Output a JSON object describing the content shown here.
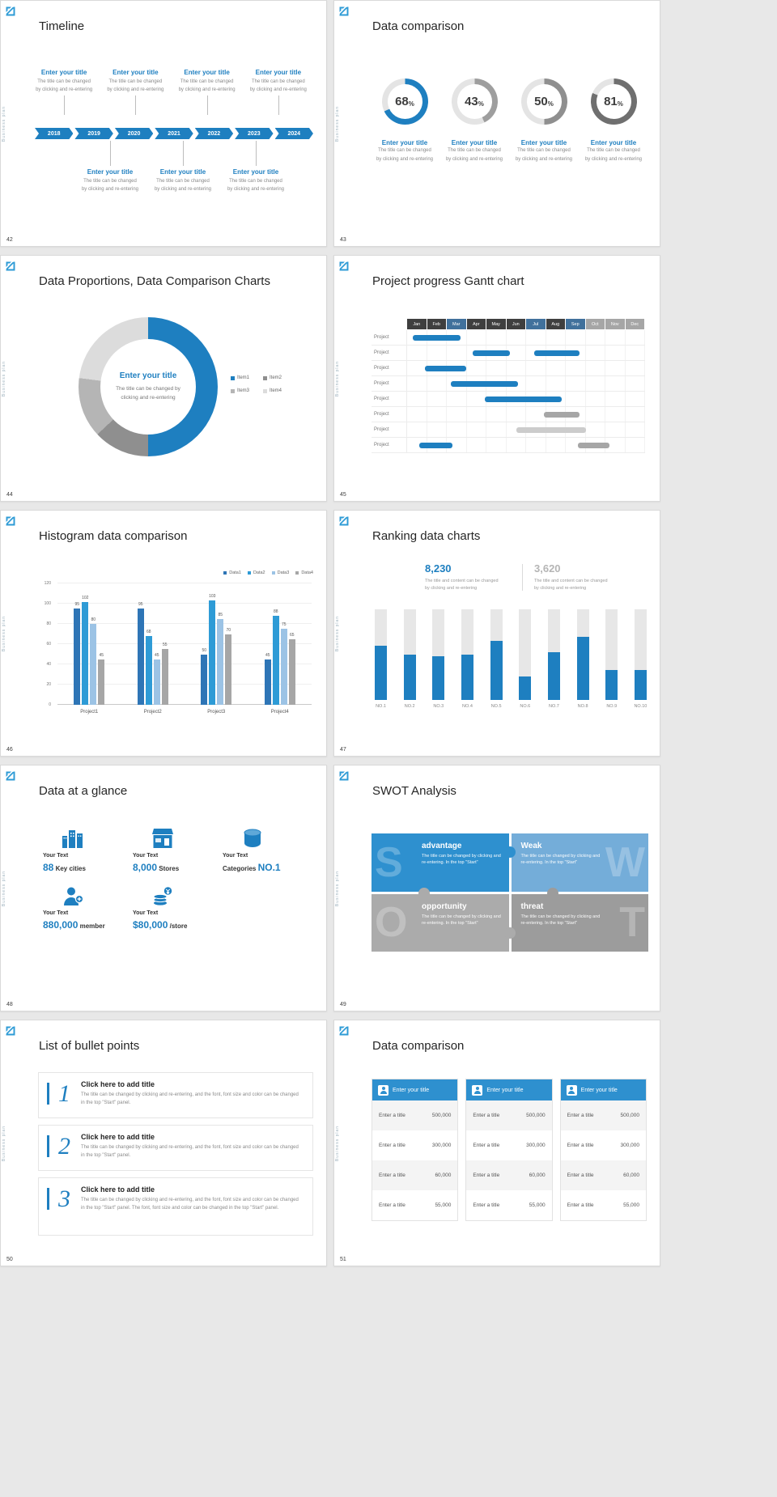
{
  "page": {
    "background": "#e8e8e8",
    "accent": "#1e7fc0"
  },
  "common": {
    "sidebar_text": "Business plan"
  },
  "s42": {
    "number": "42",
    "title": "Timeline",
    "entry": {
      "title": "Enter your title",
      "line1": "The title can be changed",
      "line2": "by clicking and re-entering"
    },
    "top_count": 4,
    "bottom_count": 3,
    "years": [
      "2018",
      "2019",
      "2020",
      "2021",
      "2022",
      "2023",
      "2024"
    ]
  },
  "s43": {
    "number": "43",
    "title": "Data comparison",
    "track_color": "#e4e4e4",
    "entry": {
      "title": "Enter your title",
      "line1": "The title can be changed",
      "line2": "by clicking and re-entering"
    },
    "chart_data": {
      "type": "donut-set",
      "items": [
        {
          "pct": 68,
          "color": "#1e7fc0"
        },
        {
          "pct": 43,
          "color": "#9e9e9e"
        },
        {
          "pct": 50,
          "color": "#8f8f8f"
        },
        {
          "pct": 81,
          "color": "#6f6f6f"
        }
      ]
    }
  },
  "s44": {
    "number": "44",
    "title": "Data Proportions, Data Comparison Charts",
    "center": {
      "title": "Enter your title",
      "line1": "The title can be changed by",
      "line2": "clicking and re-entering"
    },
    "chart_data": {
      "type": "pie",
      "segments": [
        {
          "label": "Item1",
          "pct": 50,
          "color": "#1e7fc0"
        },
        {
          "label": "Item2",
          "pct": 13,
          "color": "#8f8f8f"
        },
        {
          "label": "Item3",
          "pct": 14,
          "color": "#b5b5b5"
        },
        {
          "label": "Item4",
          "pct": 23,
          "color": "#dcdcdc"
        }
      ]
    }
  },
  "s45": {
    "number": "45",
    "title": "Project progress Gantt chart",
    "row_label": "Project",
    "row_count": 8,
    "months": [
      {
        "label": "Jan",
        "variant": "dark"
      },
      {
        "label": "Feb",
        "variant": "dark"
      },
      {
        "label": "Mar",
        "variant": "blue"
      },
      {
        "label": "Apr",
        "variant": "dark"
      },
      {
        "label": "May",
        "variant": "dark"
      },
      {
        "label": "Jun",
        "variant": "dark"
      },
      {
        "label": "Jul",
        "variant": "blue"
      },
      {
        "label": "Aug",
        "variant": "dark"
      },
      {
        "label": "Sep",
        "variant": "blue"
      },
      {
        "label": "Oct",
        "variant": "light"
      },
      {
        "label": "Nov",
        "variant": "light"
      },
      {
        "label": "Dec",
        "variant": "light"
      }
    ],
    "variant_colors": {
      "dark": "#3f3f3f",
      "blue": "#41719c",
      "light": "#a6a6a6"
    },
    "chart_data": {
      "type": "gantt",
      "bars": [
        {
          "row": 0,
          "start": 0.3,
          "span": 2.4,
          "color": "#1e7fc0"
        },
        {
          "row": 1,
          "start": 3.3,
          "span": 1.9,
          "color": "#1e7fc0"
        },
        {
          "row": 1,
          "start": 6.4,
          "span": 2.3,
          "color": "#1e7fc0"
        },
        {
          "row": 2,
          "start": 0.9,
          "span": 2.1,
          "color": "#1e7fc0"
        },
        {
          "row": 3,
          "start": 2.2,
          "span": 3.4,
          "color": "#1e7fc0"
        },
        {
          "row": 4,
          "start": 3.9,
          "span": 3.9,
          "color": "#1e7fc0"
        },
        {
          "row": 5,
          "start": 6.9,
          "span": 1.8,
          "color": "#a6a6a6"
        },
        {
          "row": 6,
          "start": 5.5,
          "span": 3.5,
          "color": "#cccccc"
        },
        {
          "row": 7,
          "start": 0.6,
          "span": 1.7,
          "color": "#1e7fc0"
        },
        {
          "row": 7,
          "start": 8.6,
          "span": 1.6,
          "color": "#a6a6a6"
        }
      ]
    }
  },
  "s46": {
    "number": "46",
    "title": "Histogram data comparison",
    "chart_data": {
      "type": "bar",
      "categories": [
        "Project1",
        "Project2",
        "Project3",
        "Project4"
      ],
      "series": [
        {
          "name": "Data1",
          "color": "#2e75b6",
          "values": [
            95,
            95,
            50,
            45
          ]
        },
        {
          "name": "Data2",
          "color": "#2e9bd6",
          "values": [
            102,
            68,
            103,
            88
          ]
        },
        {
          "name": "Data3",
          "color": "#9cc3e5",
          "values": [
            80,
            45,
            85,
            75
          ]
        },
        {
          "name": "Data4",
          "color": "#a6a6a6",
          "values": [
            45,
            55,
            70,
            65
          ]
        }
      ],
      "ylim": [
        0,
        120
      ],
      "ystep": 20
    }
  },
  "s47": {
    "number": "47",
    "title": "Ranking data charts",
    "stat1": {
      "value": "8,230",
      "line1": "The title and content can be changed",
      "line2": "by clicking and re-entering"
    },
    "stat2": {
      "value": "3,620",
      "line1": "The title and content can be changed",
      "line2": "by clicking and re-entering"
    },
    "chart_data": {
      "type": "bar",
      "categories": [
        "NO.1",
        "NO.2",
        "NO.3",
        "NO.4",
        "NO.5",
        "NO.6",
        "NO.7",
        "NO.8",
        "NO.9",
        "NO.10"
      ],
      "fractions": [
        0.6,
        0.5,
        0.48,
        0.5,
        0.65,
        0.26,
        0.53,
        0.7,
        0.33,
        0.33
      ],
      "bar_color": "#1e7fc0",
      "track_color": "#e7e7e7"
    }
  },
  "s48": {
    "number": "48",
    "title": "Data at a glance",
    "items": [
      {
        "icon": "city-icon",
        "label": "Your Text",
        "value": "88",
        "unit": "Key cities",
        "value_first": true
      },
      {
        "icon": "store-icon",
        "label": "Your Text",
        "value": "8,000",
        "unit": "Stores",
        "value_first": true
      },
      {
        "icon": "categories-icon",
        "label": "Your Text",
        "value": "NO.1",
        "unit": "Categories",
        "value_first": false
      },
      {
        "icon": "member-icon",
        "label": "Your Text",
        "value": "880,000",
        "unit": "member",
        "value_first": true
      },
      {
        "icon": "money-icon",
        "label": "Your Text",
        "value": "$80,000",
        "unit": "/store",
        "value_first": true
      }
    ]
  },
  "s49": {
    "number": "49",
    "title": "SWOT Analysis",
    "quadrants": [
      {
        "letter": "S",
        "heading": "advantage",
        "body": "The title can be changed by clicking and re-entering. In the top \"Start\"",
        "color": "#2e90cf",
        "letter_side": "left"
      },
      {
        "letter": "W",
        "heading": "Weak",
        "body": "The title can be changed by clicking and re-entering. In the top \"Start\"",
        "color": "#74add9",
        "letter_side": "right"
      },
      {
        "letter": "O",
        "heading": "opportunity",
        "body": "The title can be changed by clicking and re-entering. In the top \"Start\"",
        "color": "#ababab",
        "letter_side": "left"
      },
      {
        "letter": "T",
        "heading": "threat",
        "body": "The title can be changed by clicking and re-entering. In the top \"Start\"",
        "color": "#9c9c9c",
        "letter_side": "right"
      }
    ]
  },
  "s50": {
    "number": "50",
    "title": "List of bullet points",
    "items": [
      {
        "num": "1",
        "heading": "Click here to add title",
        "body": "The title can be changed by clicking and re-entering, and the font, font size and color can be changed in the top \"Start\" panel."
      },
      {
        "num": "2",
        "heading": "Click here to add title",
        "body": "The title can be changed by clicking and re-entering, and the font, font size and color can be changed in the top \"Start\" panel."
      },
      {
        "num": "3",
        "heading": "Click here to add title",
        "body": "The title can be changed by clicking and re-entering, and the font, font size and color can be changed in the top \"Start\" panel. The font, font size and color can be changed in the top \"Start\" panel."
      }
    ]
  },
  "s51": {
    "number": "51",
    "title": "Data comparison",
    "cards": [
      {
        "icon": "person-chart-icon",
        "title": "Enter your title",
        "rows": [
          {
            "label": "Enter a title",
            "value": "500,000"
          },
          {
            "label": "Enter a title",
            "value": "300,000"
          },
          {
            "label": "Enter a title",
            "value": "60,000"
          },
          {
            "label": "Enter a title",
            "value": "55,000"
          }
        ]
      },
      {
        "icon": "person-chart-icon",
        "title": "Enter your title",
        "rows": [
          {
            "label": "Enter a title",
            "value": "500,000"
          },
          {
            "label": "Enter a title",
            "value": "300,000"
          },
          {
            "label": "Enter a title",
            "value": "60,000"
          },
          {
            "label": "Enter a title",
            "value": "55,000"
          }
        ]
      },
      {
        "icon": "person-chart-icon",
        "title": "Enter your title",
        "rows": [
          {
            "label": "Enter a title",
            "value": "500,000"
          },
          {
            "label": "Enter a title",
            "value": "300,000"
          },
          {
            "label": "Enter a title",
            "value": "60,000"
          },
          {
            "label": "Enter a title",
            "value": "55,000"
          }
        ]
      }
    ]
  }
}
